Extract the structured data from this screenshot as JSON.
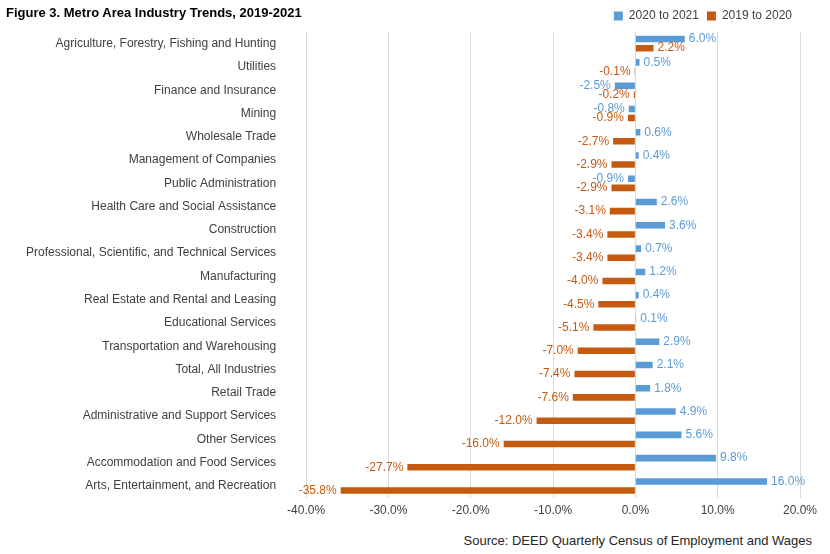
{
  "chart_data": {
    "type": "bar",
    "title": "Figure 3. Metro Area Industry Trends, 2019-2021",
    "annotations": [
      "Source: DEED Quarterly Census of Employment and Wages"
    ],
    "orientation": "horizontal",
    "categories": [
      "Agriculture, Forestry, Fishing and Hunting",
      "Utilities",
      "Finance and Insurance",
      "Mining",
      "Wholesale Trade",
      "Management of Companies",
      "Public Administration",
      "Health Care and Social Assistance",
      "Construction",
      "Professional, Scientific, and Technical Services",
      "Manufacturing",
      "Real Estate and Rental and Leasing",
      "Educational Services",
      "Transportation and Warehousing",
      "Total, All Industries",
      "Retail Trade",
      "Administrative and Support Services",
      "Other Services",
      "Accommodation and Food Services",
      "Arts, Entertainment, and Recreation"
    ],
    "series": [
      {
        "name": "2020 to 2021",
        "color": "#5b9bd5",
        "values": [
          6.0,
          0.5,
          -2.5,
          -0.8,
          0.6,
          0.4,
          -0.9,
          2.6,
          3.6,
          0.7,
          1.2,
          0.4,
          0.1,
          2.9,
          2.1,
          1.8,
          4.9,
          5.6,
          9.8,
          16.0
        ],
        "value_labels": [
          "6.0%",
          "0.5%",
          "-2.5%",
          "-0.8%",
          "0.6%",
          "0.4%",
          "-0.9%",
          "2.6%",
          "3.6%",
          "0.7%",
          "1.2%",
          "0.4%",
          "0.1%",
          "2.9%",
          "2.1%",
          "1.8%",
          "4.9%",
          "5.6%",
          "9.8%",
          "16.0%"
        ]
      },
      {
        "name": "2019 to 2020",
        "color": "#c55a11",
        "values": [
          2.2,
          -0.1,
          -0.2,
          -0.9,
          -2.7,
          -2.9,
          -2.9,
          -3.1,
          -3.4,
          -3.4,
          -4.0,
          -4.5,
          -5.1,
          -7.0,
          -7.4,
          -7.6,
          -12.0,
          -16.0,
          -27.7,
          -35.8
        ],
        "value_labels": [
          "2.2%",
          "-0.1%",
          "-0.2%",
          "-0.9%",
          "-2.7%",
          "-2.9%",
          "-2.9%",
          "-3.1%",
          "-3.4%",
          "-3.4%",
          "-4.0%",
          "-4.5%",
          "-5.1%",
          "-7.0%",
          "-7.4%",
          "-7.6%",
          "-12.0%",
          "-16.0%",
          "-27.7%",
          "-35.8%"
        ]
      }
    ],
    "xlim": [
      -40,
      20
    ],
    "xticks": [
      {
        "value": -40,
        "label": "-40.0%"
      },
      {
        "value": -30,
        "label": "-30.0%"
      },
      {
        "value": -20,
        "label": "-20.0%"
      },
      {
        "value": -10,
        "label": "-10.0%"
      },
      {
        "value": 0,
        "label": "0.0%"
      },
      {
        "value": 10,
        "label": "10.0%"
      },
      {
        "value": 20,
        "label": "20.0%"
      }
    ],
    "grid": true,
    "legend": "top-right",
    "data_labels": true
  }
}
